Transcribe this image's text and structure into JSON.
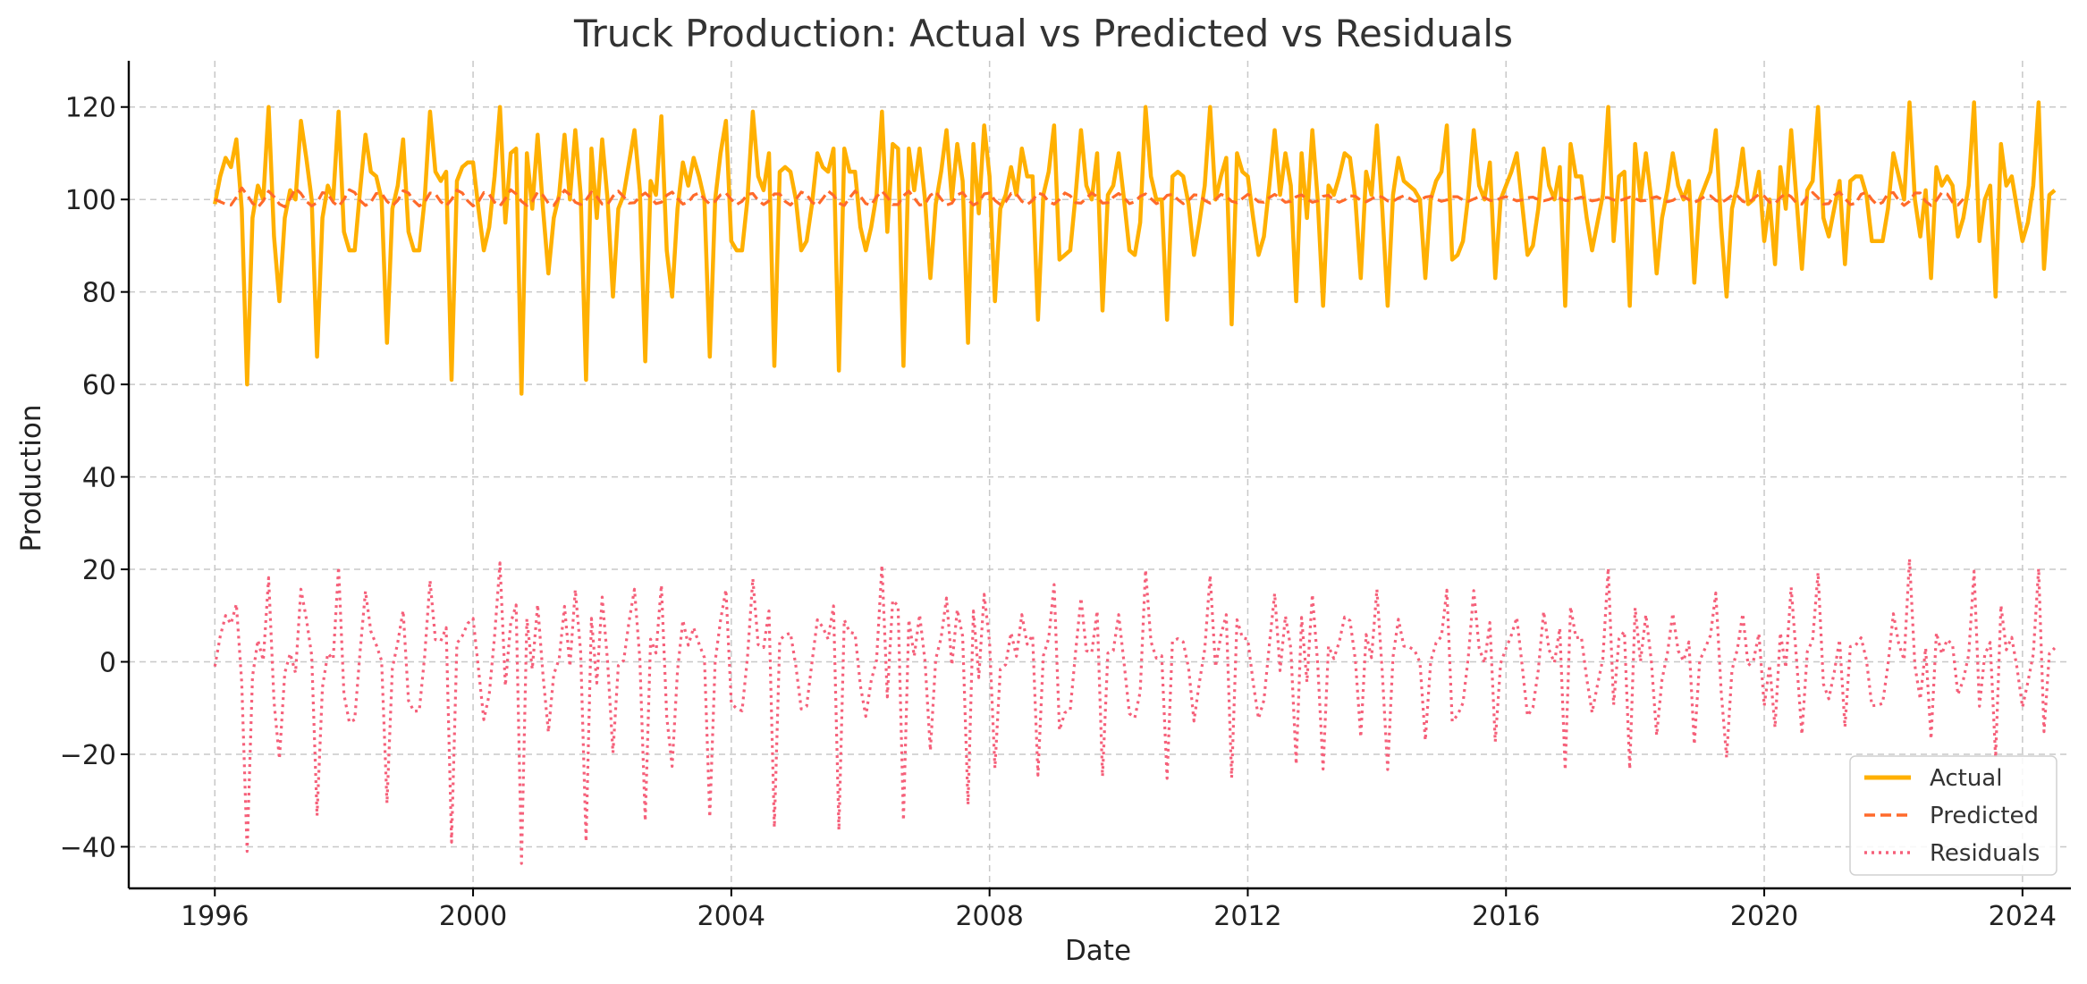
{
  "chart_data": {
    "type": "line",
    "title": "Truck Production: Actual vs Predicted vs Residuals",
    "xlabel": "Date",
    "ylabel": "Production",
    "xlim": [
      "1994-09",
      "2024-10"
    ],
    "ylim": [
      -49,
      130
    ],
    "grid": true,
    "legend_position": "bottom-right",
    "x_ticks": [
      "1996",
      "2000",
      "2004",
      "2008",
      "2012",
      "2016",
      "2020",
      "2024"
    ],
    "y_ticks": [
      "−40",
      "−20",
      "0",
      "20",
      "40",
      "60",
      "80",
      "100",
      "120"
    ],
    "x_start": "1996-01",
    "x_end": "2023-06",
    "x_step": "month",
    "series": [
      {
        "name": "Actual",
        "color": "#ffb000",
        "style": "solid",
        "values": [
          99,
          105,
          109,
          107,
          113,
          98,
          60,
          96,
          103,
          100,
          120,
          92,
          78,
          96,
          102,
          100,
          117,
          109,
          100,
          66,
          96,
          103,
          100,
          119,
          93,
          89,
          89,
          102,
          114,
          106,
          105,
          100,
          69,
          98,
          103,
          113,
          93,
          89,
          89,
          100,
          119,
          106,
          104,
          106,
          61,
          104,
          107,
          108,
          108,
          98,
          89,
          94,
          105,
          120,
          95,
          110,
          111,
          58,
          110,
          98,
          114,
          98,
          84,
          96,
          101,
          114,
          100,
          115,
          101,
          61,
          111,
          96,
          113,
          100,
          79,
          98,
          101,
          108,
          115,
          102,
          65,
          104,
          101,
          118,
          89,
          79,
          98,
          108,
          103,
          109,
          105,
          100,
          66,
          100,
          110,
          117,
          91,
          89,
          89,
          100,
          119,
          105,
          102,
          110,
          64,
          106,
          107,
          106,
          100,
          89,
          91,
          99,
          110,
          107,
          106,
          111,
          63,
          111,
          106,
          106,
          94,
          89,
          94,
          101,
          119,
          93,
          112,
          111,
          64,
          111,
          102,
          111,
          100,
          83,
          99,
          106,
          115,
          100,
          112,
          104,
          69,
          112,
          97,
          116,
          105,
          78,
          98,
          101,
          107,
          101,
          111,
          105,
          105,
          74,
          101,
          106,
          116,
          87,
          88,
          89,
          101,
          115,
          103,
          100,
          110,
          76,
          101,
          103,
          110,
          100,
          89,
          88,
          95,
          120,
          105,
          100,
          100,
          74,
          105,
          106,
          105,
          99,
          88,
          95,
          103,
          120,
          100,
          105,
          109,
          73,
          110,
          106,
          105,
          96,
          88,
          92,
          103,
          115,
          101,
          110,
          103,
          78,
          110,
          96,
          115,
          100,
          77,
          103,
          101,
          105,
          110,
          109,
          100,
          83,
          106,
          101,
          116,
          98,
          77,
          101,
          109,
          104,
          103,
          102,
          100,
          83,
          100,
          104,
          106,
          116,
          87,
          88,
          91,
          101,
          115,
          103,
          100,
          108,
          83,
          100,
          103,
          106,
          110,
          99,
          88,
          90,
          98,
          111,
          103,
          100,
          107,
          77,
          112,
          105,
          105,
          96,
          89,
          95,
          101,
          120,
          91,
          105,
          106,
          77,
          112,
          100,
          110,
          100,
          84,
          96,
          102,
          110,
          103,
          100,
          104,
          82,
          100,
          103,
          106,
          115,
          94,
          79,
          98,
          103,
          111,
          99,
          100,
          106,
          91,
          100,
          86,
          107,
          98,
          115,
          100,
          85,
          102,
          104,
          120,
          96,
          92,
          98,
          104,
          86,
          104,
          105,
          105,
          101,
          91,
          91,
          91,
          98,
          110,
          105,
          100,
          121,
          100,
          92,
          102,
          83,
          107,
          103,
          105,
          103,
          92,
          96,
          103,
          121,
          91,
          100,
          103,
          79,
          112,
          103,
          105,
          98,
          91,
          95,
          103,
          121,
          85,
          101,
          102
        ]
      },
      {
        "name": "Predicted",
        "color": "#ff6a2b",
        "style": "dashed",
        "values": [
          100,
          99.5,
          99,
          98.8,
          100.5,
          102.5,
          101,
          99.2,
          98.3,
          99.7,
          101.8,
          100.6,
          99,
          98.4,
          100.2,
          102.4,
          101.3,
          99.6,
          98.6,
          99.3,
          101.5,
          101.2,
          99.4,
          98.5,
          100,
          102.1,
          101.5,
          99.8,
          98.7,
          99.4,
          101.3,
          101.3,
          99.6,
          98.6,
          99.8,
          101.9,
          101.4,
          99.7,
          98.6,
          99.4,
          101.4,
          101.2,
          99.5,
          98.6,
          100,
          102,
          101.4,
          99.7,
          98.6,
          99.5,
          101.5,
          101.1,
          99.4,
          98.6,
          100.2,
          102.1,
          101.2,
          99.6,
          98.7,
          99.6,
          101.6,
          100.9,
          99.2,
          98.7,
          100.4,
          102,
          101,
          99.4,
          98.9,
          99.9,
          101.6,
          100.6,
          99,
          98.9,
          100.7,
          101.8,
          100.6,
          99.2,
          99.3,
          100.6,
          101.4,
          100.4,
          99.1,
          99.4,
          100.9,
          101.6,
          100.2,
          99,
          99.4,
          100.9,
          101.4,
          100.1,
          99,
          99.6,
          101,
          101.4,
          100,
          98.9,
          99.6,
          101.1,
          101.3,
          99.8,
          98.9,
          99.7,
          101.2,
          101.2,
          99.6,
          98.8,
          100,
          101.6,
          101.1,
          99.4,
          98.7,
          100.2,
          101.8,
          100.9,
          99.2,
          98.7,
          100.4,
          101.8,
          100.7,
          99.1,
          98.8,
          100.6,
          101.8,
          100.5,
          98.9,
          98.9,
          100.8,
          101.8,
          100.3,
          98.8,
          99,
          100.9,
          101.7,
          100.1,
          98.8,
          99.2,
          101,
          101.5,
          100,
          98.8,
          99.4,
          101.2,
          101.4,
          99.8,
          98.9,
          99.5,
          101.3,
          101.2,
          99.6,
          98.9,
          99.8,
          101.4,
          101,
          99.5,
          99,
          100,
          101.4,
          100.8,
          99.3,
          99.2,
          100.3,
          101.4,
          100.6,
          99.2,
          99.3,
          100.5,
          101.3,
          100.4,
          99.1,
          99.5,
          100.7,
          101.2,
          100.2,
          99.1,
          99.6,
          100.9,
          101.1,
          100,
          99.1,
          99.8,
          101,
          100.9,
          99.8,
          99.2,
          100,
          101.1,
          100.7,
          99.6,
          99.3,
          100.2,
          101.1,
          100.5,
          99.5,
          99.4,
          100.4,
          101.1,
          100.3,
          99.4,
          99.6,
          100.6,
          101,
          100.1,
          99.4,
          99.7,
          100.7,
          100.9,
          99.9,
          99.4,
          99.9,
          100.8,
          100.7,
          99.8,
          99.5,
          100.1,
          100.8,
          100.5,
          99.7,
          99.6,
          100.3,
          100.8,
          100.3,
          99.6,
          99.8,
          100.5,
          100.7,
          100.1,
          99.6,
          99.9,
          100.6,
          100.6,
          99.9,
          99.6,
          100.1,
          100.6,
          100.4,
          99.8,
          99.7,
          100.3,
          100.6,
          100.2,
          99.7,
          99.9,
          100.4,
          100.5,
          100,
          99.7,
          100,
          100.5,
          100.3,
          99.8,
          99.8,
          100.2,
          100.5,
          100.1,
          99.7,
          99.9,
          100.4,
          100.4,
          99.9,
          99.7,
          100.1,
          100.5,
          100.2,
          99.7,
          99.8,
          100.3,
          100.6,
          100,
          99.5,
          99.8,
          100.5,
          100.7,
          99.9,
          99.4,
          99.9,
          100.7,
          100.8,
          99.8,
          99.3,
          100,
          100.9,
          100.8,
          99.6,
          99.2,
          100.2,
          101.1,
          100.7,
          99.4,
          99.1,
          100.4,
          101.3,
          100.6,
          99.2,
          99,
          100.6,
          101.5,
          100.4,
          99,
          99.1,
          100.9,
          101.6,
          100.2,
          98.9,
          99.2,
          101.1,
          101.6,
          100,
          98.8,
          99.4,
          101.3,
          101.5,
          99.8,
          98.7,
          99.6,
          101.4,
          101.4,
          99.6,
          98.7,
          99.8,
          101.5,
          101.2,
          99.4,
          98.8,
          100.1
        ]
      },
      {
        "name": "Residuals",
        "color": "#f5607a",
        "style": "dotted",
        "values": [
          -1,
          5.5,
          10,
          8.2,
          12.5,
          -4.5,
          -41,
          -3.2,
          4.7,
          0.3,
          18.2,
          -8.6,
          -21,
          -2.4,
          1.8,
          -2.4,
          15.7,
          9.4,
          1.4,
          -33.3,
          -5.5,
          1.8,
          0.6,
          20.5,
          -7,
          -13.1,
          -12.5,
          2.2,
          15.3,
          6.6,
          3.7,
          0.2,
          -30.6,
          -1.4,
          4.2,
          11.1,
          -8.4,
          -10.7,
          -10.6,
          1.2,
          17.6,
          4.8,
          4.5,
          7.4,
          -39,
          4,
          5.6,
          8.3,
          9.4,
          -1.5,
          -12.5,
          -7.1,
          5.6,
          21.4,
          -5.2,
          8.4,
          12.3,
          -43.6,
          9.3,
          -1.6,
          12.4,
          -2.9,
          -15.2,
          -2.7,
          0.6,
          12,
          -1,
          15.6,
          2.1,
          -38.9,
          9.4,
          -4.6,
          14,
          0.1,
          -19.7,
          -0.8,
          0.3,
          8.8,
          15.7,
          0.6,
          -34.4,
          4.9,
          1.9,
          16.6,
          -11.9,
          -22.6,
          -1.9,
          9,
          3.6,
          7.4,
          3.9,
          0.9,
          -33.6,
          0.1,
          9,
          15.6,
          -9,
          -10.1,
          -10.6,
          0.9,
          18,
          3.7,
          3.1,
          11,
          -35.8,
          4.7,
          5.8,
          6.2,
          -0.9,
          -10.2,
          -9.6,
          -0.1,
          9.1,
          7.5,
          4.9,
          12.1,
          -36.4,
          9.1,
          6.4,
          6.1,
          -5.2,
          -11.8,
          -4.1,
          0.4,
          20.9,
          -7.6,
          13.3,
          12.1,
          -34.3,
          9.1,
          1.2,
          10.2,
          0.2,
          -19.2,
          0.6,
          5.2,
          13.8,
          -0.7,
          11.3,
          5.5,
          -30.9,
          11,
          -3.4,
          14.6,
          4.3,
          -23,
          -1.6,
          -0.6,
          6.3,
          1.2,
          10.2,
          3.8,
          5.8,
          -24.5,
          1.3,
          5.1,
          16.7,
          -14.8,
          -11,
          -10.4,
          2.2,
          13.8,
          2.4,
          2,
          11,
          -24.8,
          1.9,
          2.4,
          10.2,
          -0.2,
          -11.2,
          -12.1,
          -6.5,
          19.9,
          4.4,
          0.8,
          1.3,
          -25.2,
          4.5,
          5,
          4.3,
          -1.4,
          -12.8,
          -4.5,
          2.7,
          18.7,
          -1.1,
          5.7,
          10.2,
          -25.1,
          9.1,
          5.2,
          4.9,
          -4.5,
          -12.3,
          -8.3,
          3.5,
          14.8,
          -1.9,
          9.9,
          2.9,
          -22.2,
          9.6,
          -4.4,
          14.6,
          -0.5,
          -23.2,
          3.4,
          0.7,
          4.3,
          9.7,
          8.9,
          0.4,
          -16.3,
          5.9,
          0.9,
          15.7,
          -2.3,
          -23.3,
          1.1,
          9.2,
          3.4,
          3.2,
          2.5,
          -0.1,
          -17,
          0.1,
          4.1,
          5.5,
          15.5,
          -12.9,
          -11.5,
          -8.9,
          1.1,
          15.4,
          3,
          -0.3,
          8.5,
          -17.3,
          -0.3,
          2.9,
          5.8,
          9.6,
          -0.8,
          -11.7,
          -9.9,
          -1.8,
          10.9,
          2.6,
          -0.2,
          7.3,
          -23.4,
          11.9,
          5.2,
          5.4,
          -3.6,
          -11,
          -5,
          0.6,
          20.3,
          -9.3,
          5,
          6.6,
          -23.2,
          11.7,
          0.1,
          10.2,
          0.3,
          -15.9,
          -3.8,
          1.8,
          10.5,
          2.4,
          0.2,
          4.3,
          -17.9,
          0.2,
          2.9,
          5.7,
          14.9,
          -6.5,
          -20.7,
          -1.8,
          2.7,
          10.4,
          -0.8,
          0.2,
          6.1,
          -9.5,
          -0.7,
          -14.2,
          6.3,
          -1.3,
          16.1,
          0.5,
          -15.7,
          2.2,
          4.7,
          19.3,
          -4.8,
          -8,
          -2.3,
          4.8,
          -14.1,
          3.3,
          3.6,
          5.2,
          0.4,
          -9.5,
          -9.4,
          -9,
          -0.6,
          10.4,
          3.9,
          0.4,
          22.3,
          -0.8,
          -8.1,
          3,
          -16.7,
          6.3,
          1.7,
          4.8,
          3.7,
          -7.1,
          -3.9,
          1.5,
          19.6,
          -9.6,
          1.6,
          4.2,
          -20.8,
          12.2,
          2.6,
          5.3,
          -1.4,
          -9.8,
          -4.4,
          1.6,
          20.2,
          -15.1,
          1.8,
          3
        ]
      }
    ]
  }
}
